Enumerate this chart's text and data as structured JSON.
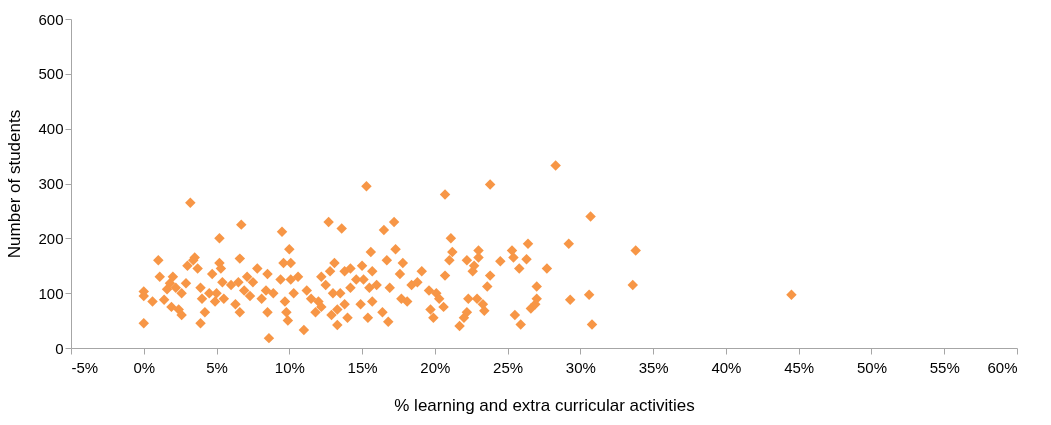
{
  "chart_data": {
    "type": "scatter",
    "xlabel": "% learning and extra curricular activities",
    "ylabel": "Number of students",
    "marker": "diamond",
    "grid": false,
    "xlim": [
      -5,
      60
    ],
    "xticks": [
      {
        "value": -5,
        "label": "-5%"
      },
      {
        "value": 0,
        "label": "0%"
      },
      {
        "value": 5,
        "label": "5%"
      },
      {
        "value": 10,
        "label": "10%"
      },
      {
        "value": 15,
        "label": "15%"
      },
      {
        "value": 20,
        "label": "20%"
      },
      {
        "value": 25,
        "label": "25%"
      },
      {
        "value": 30,
        "label": "30%"
      },
      {
        "value": 35,
        "label": "35%"
      },
      {
        "value": 40,
        "label": "40%"
      },
      {
        "value": 45,
        "label": "45%"
      },
      {
        "value": 50,
        "label": "50%"
      },
      {
        "value": 55,
        "label": "55%"
      },
      {
        "value": 60,
        "label": "60%"
      }
    ],
    "ylim": [
      0,
      600
    ],
    "yticks": [
      0,
      100,
      200,
      300,
      400,
      500,
      600
    ],
    "series": [
      {
        "color": "#f79646",
        "x": [
          0,
          0,
          0,
          0.6,
          1.0,
          1.1,
          1.4,
          1.6,
          1.8,
          1.9,
          2.0,
          2.2,
          2.4,
          2.6,
          2.6,
          2.9,
          3.0,
          3.2,
          3.4,
          3.5,
          3.7,
          3.9,
          3.9,
          4.0,
          4.2,
          4.5,
          4.7,
          4.9,
          5.0,
          5.2,
          5.2,
          5.3,
          5.4,
          5.5,
          6.0,
          6.3,
          6.5,
          6.6,
          6.6,
          6.7,
          6.9,
          7.1,
          7.3,
          7.5,
          7.8,
          8.1,
          8.4,
          8.5,
          8.5,
          8.6,
          8.9,
          9.4,
          9.5,
          9.6,
          9.7,
          9.8,
          9.9,
          10.0,
          10.1,
          10.1,
          10.3,
          10.6,
          11.0,
          11.2,
          11.5,
          11.8,
          12.0,
          12.2,
          12.2,
          12.5,
          12.7,
          12.8,
          12.9,
          13.0,
          13.1,
          13.3,
          13.3,
          13.5,
          13.6,
          13.8,
          13.8,
          14.0,
          14.2,
          14.2,
          14.6,
          14.9,
          15.0,
          15.1,
          15.3,
          15.4,
          15.5,
          15.6,
          15.7,
          15.7,
          16.0,
          16.4,
          16.5,
          16.7,
          16.8,
          16.9,
          17.2,
          17.3,
          17.6,
          17.7,
          17.8,
          18.1,
          18.4,
          18.8,
          19.1,
          19.6,
          19.7,
          19.9,
          20.1,
          20.3,
          20.6,
          20.7,
          20.7,
          21.0,
          21.1,
          21.2,
          21.7,
          22.0,
          22.2,
          22.2,
          22.3,
          22.6,
          22.7,
          22.9,
          23.0,
          23.0,
          23.3,
          23.4,
          23.6,
          23.8,
          23.8,
          24.5,
          25.3,
          25.4,
          25.5,
          25.8,
          25.9,
          26.3,
          26.4,
          26.6,
          26.9,
          27.0,
          27.0,
          27.7,
          28.3,
          29.2,
          29.3,
          30.6,
          30.7,
          30.8,
          33.6,
          33.8,
          44.5
        ],
        "values": [
          103,
          95,
          45,
          85,
          160,
          130,
          88,
          107,
          118,
          75,
          130,
          110,
          70,
          100,
          60,
          118,
          150,
          265,
          160,
          165,
          145,
          110,
          45,
          90,
          65,
          100,
          135,
          85,
          100,
          200,
          155,
          145,
          120,
          90,
          115,
          80,
          120,
          65,
          163,
          225,
          105,
          130,
          95,
          120,
          145,
          90,
          105,
          135,
          65,
          18,
          100,
          125,
          212,
          155,
          85,
          65,
          50,
          180,
          155,
          125,
          100,
          130,
          33,
          105,
          90,
          65,
          85,
          75,
          130,
          115,
          230,
          140,
          60,
          100,
          155,
          70,
          42,
          100,
          218,
          80,
          140,
          55,
          110,
          145,
          125,
          80,
          150,
          125,
          295,
          55,
          110,
          175,
          140,
          85,
          115,
          65,
          215,
          160,
          48,
          110,
          230,
          180,
          135,
          90,
          155,
          85,
          115,
          120,
          140,
          105,
          70,
          55,
          100,
          90,
          75,
          280,
          132,
          160,
          200,
          175,
          40,
          55,
          65,
          160,
          90,
          140,
          150,
          90,
          165,
          178,
          80,
          68,
          112,
          298,
          132,
          158,
          178,
          165,
          60,
          145,
          43,
          162,
          190,
          72,
          80,
          90,
          112,
          145,
          333,
          190,
          88,
          97,
          240,
          43,
          115,
          178,
          97
        ]
      }
    ]
  }
}
